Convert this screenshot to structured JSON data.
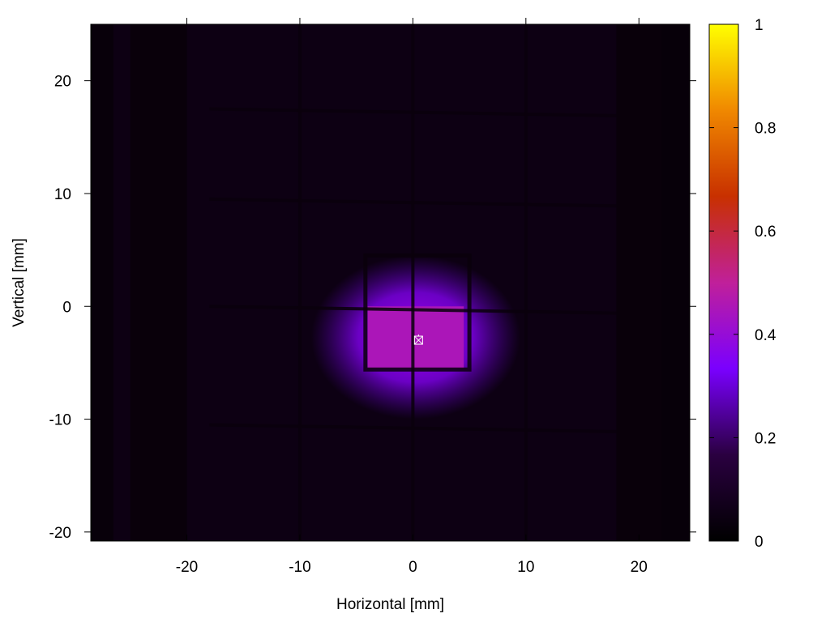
{
  "chart_data": {
    "type": "heatmap",
    "title": "",
    "xlabel": "Horizontal [mm]",
    "ylabel": "Vertical [mm]",
    "xlim": [
      -28.5,
      24.5
    ],
    "ylim": [
      -20.8,
      25
    ],
    "x_ticks": [
      -20,
      -10,
      0,
      10,
      20
    ],
    "x_tick_labels": [
      "-20",
      "-10",
      "0",
      "10",
      "20"
    ],
    "y_ticks": [
      -20,
      -10,
      0,
      10,
      20
    ],
    "y_tick_labels": [
      "-20",
      "-10",
      "0",
      "10",
      "20"
    ],
    "colorbar": {
      "range": [
        0,
        1
      ],
      "ticks": [
        0,
        0.2,
        0.4,
        0.6,
        0.8,
        1
      ],
      "tick_labels": [
        "0",
        "0.2",
        "0.4",
        "0.6",
        "0.8",
        "1"
      ],
      "colormap": [
        "#000000",
        "#2a0040",
        "#7a00ff",
        "#c0209a",
        "#c83000",
        "#f08800",
        "#ffff00"
      ]
    },
    "background_intensity": 0.05,
    "beam_peak_intensity": 0.45,
    "beam_center_marker": {
      "x": 0.5,
      "y": -3,
      "symbol": "boxed-cross",
      "color": "#ffffff"
    },
    "bright_region": {
      "x_range": [
        -4,
        4.5
      ],
      "y_range": [
        -5.5,
        0
      ]
    },
    "grid_wires": {
      "vertical_x": [
        -10,
        0,
        10
      ],
      "horizontal_y": [
        17.5,
        9.5,
        0,
        -10.5
      ]
    },
    "inner_frame": {
      "x_range": [
        -4.2,
        5
      ],
      "y_range": [
        -5.6,
        4.5
      ]
    },
    "dark_bands_x": [
      [
        -25,
        -20
      ],
      [
        18,
        22
      ]
    ],
    "grid": false,
    "legend": "none"
  }
}
